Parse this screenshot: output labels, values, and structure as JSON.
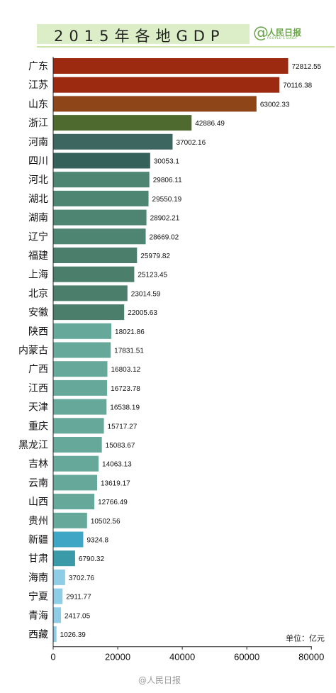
{
  "header": {
    "title": "2015年各地GDP",
    "logo_text": "人民日报",
    "logo_sub": "PEOPLE'S DAILY",
    "logo_symbol": "@"
  },
  "unit_label": "单位：亿元",
  "watermark": "@人民日报",
  "chart_data": {
    "type": "bar",
    "orientation": "horizontal",
    "title": "2015年各地GDP",
    "xlabel": "",
    "ylabel": "",
    "xlim": [
      0,
      85000
    ],
    "xticks": [
      0,
      20000,
      40000,
      60000,
      80000
    ],
    "grid": false,
    "categories": [
      "广东",
      "江苏",
      "山东",
      "浙江",
      "河南",
      "四川",
      "河北",
      "湖北",
      "湖南",
      "辽宁",
      "福建",
      "上海",
      "北京",
      "安徽",
      "陕西",
      "内蒙古",
      "广西",
      "江西",
      "天津",
      "重庆",
      "黑龙江",
      "吉林",
      "云南",
      "山西",
      "贵州",
      "新疆",
      "甘肃",
      "海南",
      "宁夏",
      "青海",
      "西藏"
    ],
    "values": [
      72812.55,
      70116.38,
      63002.33,
      42886.49,
      37002.16,
      30053.1,
      29806.11,
      29550.19,
      28902.21,
      28669.02,
      25979.82,
      25123.45,
      23014.59,
      22005.63,
      18021.86,
      17831.51,
      16803.12,
      16723.78,
      16538.19,
      15717.27,
      15083.67,
      14063.13,
      13619.17,
      12766.49,
      10502.56,
      9324.8,
      6790.32,
      3702.76,
      2911.77,
      2417.05,
      1026.39
    ],
    "value_labels": [
      "72812.55",
      "70116.38",
      "63002.33",
      "42886.49",
      "37002.16",
      "30053.1",
      "29806.11",
      "29550.19",
      "28902.21",
      "28669.02",
      "25979.82",
      "25123.45",
      "23014.59",
      "22005.63",
      "18021.86",
      "17831.51",
      "16803.12",
      "16723.78",
      "16538.19",
      "15717.27",
      "15083.67",
      "14063.13",
      "13619.17",
      "12766.49",
      "10502.56",
      "9324.8",
      "6790.32",
      "3702.76",
      "2911.77",
      "2417.05",
      "1026.39"
    ],
    "colors": [
      "#9c2a10",
      "#9c2a10",
      "#8e4618",
      "#4f6a2e",
      "#3d6660",
      "#35615b",
      "#4e8572",
      "#4e8572",
      "#4e8572",
      "#4e8572",
      "#4b7f6c",
      "#4b7f6c",
      "#4b7f6c",
      "#4b7f6c",
      "#66a99b",
      "#66a99b",
      "#66a99b",
      "#66a99b",
      "#66a99b",
      "#66a99b",
      "#66a99b",
      "#66a99b",
      "#66a99b",
      "#66a99b",
      "#66a99b",
      "#3fa6c6",
      "#3b9aa8",
      "#8fcce6",
      "#8fcce6",
      "#8fcce6",
      "#8fcce6"
    ]
  }
}
